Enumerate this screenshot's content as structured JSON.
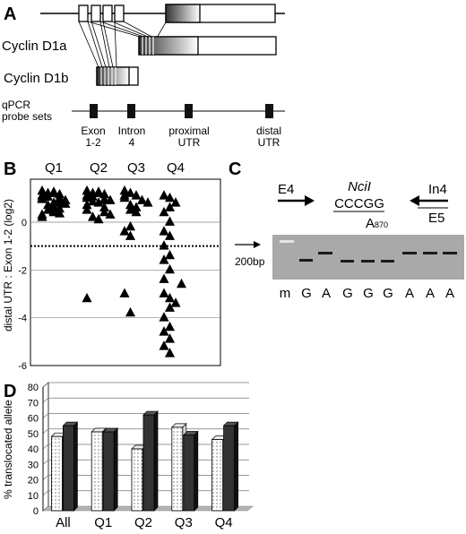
{
  "panels": {
    "a": {
      "letter": "A"
    },
    "b": {
      "letter": "B"
    },
    "c": {
      "letter": "C"
    },
    "d": {
      "letter": "D"
    }
  },
  "panel_a": {
    "isoform_a_label": "Cyclin D1a",
    "isoform_b_label": "Cyclin D1b",
    "probe_title": [
      "qPCR",
      "probe sets"
    ],
    "probes": [
      {
        "line1": "Exon",
        "line2": "1-2"
      },
      {
        "line1": "Intron",
        "line2": "4"
      },
      {
        "line1": "proximal",
        "line2": "UTR"
      },
      {
        "line1": "distal",
        "line2": "UTR"
      }
    ]
  },
  "panel_c": {
    "primer_left": "E4",
    "enzyme": "NciI",
    "site": "CCCGG",
    "snp": "A",
    "snp_sub": "870",
    "primer_right_top": "In4",
    "primer_right_bottom": "E5",
    "marker_label": "200bp",
    "lanes": [
      "m",
      "G",
      "A",
      "G",
      "G",
      "G",
      "A",
      "A",
      "A"
    ]
  },
  "chart_data": [
    {
      "type": "scatter",
      "ylabel": "distal UTR : Exon 1-2 (log2)",
      "categories": [
        "Q1",
        "Q2",
        "Q3",
        "Q4"
      ],
      "ylim": [
        -6,
        1.8
      ],
      "yticks": [
        "0",
        "-2",
        "-4",
        "-6"
      ],
      "threshold": -1,
      "grid": true,
      "series": [
        {
          "category": "Q1",
          "values": [
            1.3,
            1.2,
            1.2,
            1.1,
            1.0,
            1.0,
            0.9,
            0.8,
            0.8,
            0.7,
            0.6,
            0.5,
            0.4,
            0.3,
            0.2,
            1.25,
            1.15,
            1.05,
            0.95,
            0.85,
            0.75,
            0.65,
            0.55,
            0.45,
            0.35
          ]
        },
        {
          "category": "Q2",
          "values": [
            1.3,
            1.2,
            1.2,
            1.1,
            1.0,
            0.9,
            0.9,
            0.8,
            0.7,
            0.6,
            0.5,
            0.4,
            0.3,
            0.2,
            0.1,
            1.25,
            1.15,
            1.05,
            0.95,
            0.85,
            -3.2
          ]
        },
        {
          "category": "Q3",
          "values": [
            1.3,
            1.2,
            1.1,
            1.1,
            1.0,
            0.9,
            0.8,
            0.7,
            0.6,
            0.5,
            0.4,
            -0.2,
            -0.4,
            -0.6,
            -3.0,
            -3.8
          ]
        },
        {
          "category": "Q4",
          "values": [
            1.1,
            1.0,
            0.8,
            0.6,
            0.4,
            0.0,
            -0.4,
            -0.6,
            -1.0,
            -1.4,
            -1.6,
            -2.0,
            -2.4,
            -2.6,
            -3.0,
            -3.2,
            -3.4,
            -3.6,
            -4.0,
            -4.4,
            -4.6,
            -4.9,
            -5.2,
            -5.5
          ]
        }
      ]
    },
    {
      "type": "bar",
      "ylabel": "% translocated allele",
      "categories": [
        "All",
        "Q1",
        "Q2",
        "Q3",
        "Q4"
      ],
      "ylim": [
        0,
        80
      ],
      "yticks": [
        "0",
        "10",
        "20",
        "30",
        "40",
        "50",
        "60",
        "70",
        "80"
      ],
      "grid": true,
      "series": [
        {
          "pattern": "dotted",
          "values": [
            48,
            51,
            40,
            54,
            46
          ]
        },
        {
          "pattern": "solid",
          "values": [
            55,
            51,
            62,
            49,
            55
          ]
        }
      ]
    }
  ]
}
